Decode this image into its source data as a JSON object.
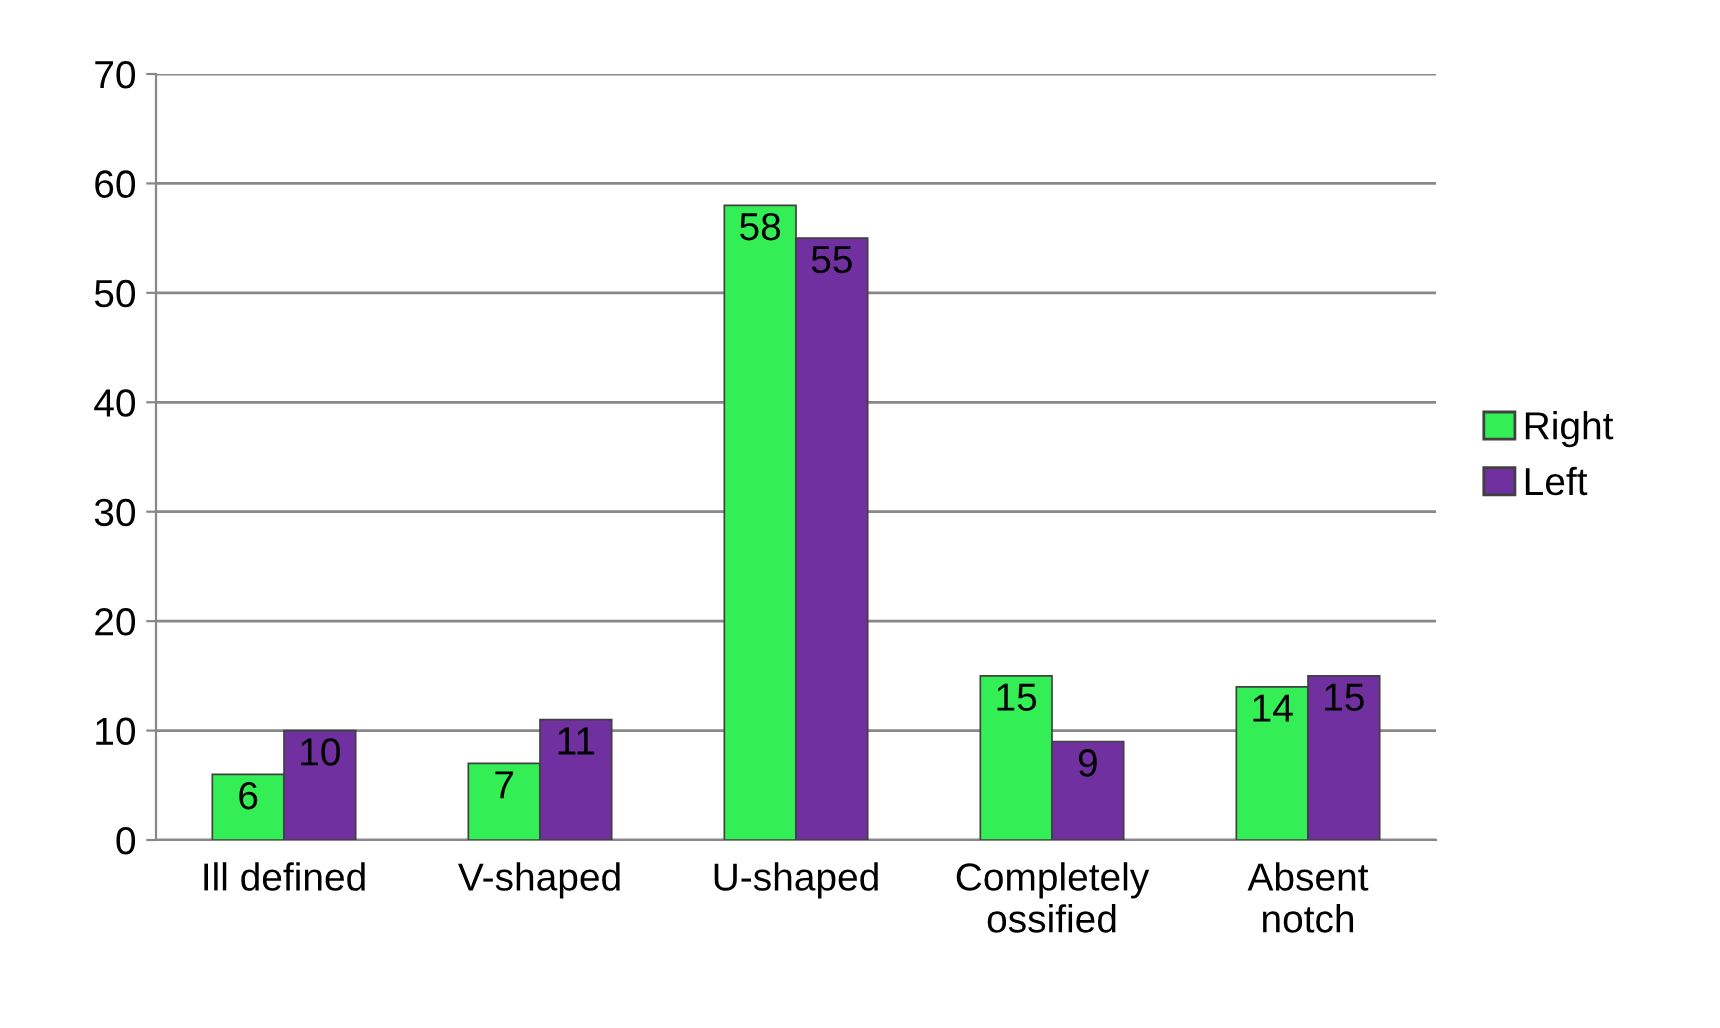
{
  "chart_data": {
    "type": "bar",
    "categories": [
      "Ill defined",
      "V-shaped",
      "U-shaped",
      "Completely\nossified",
      "Absent\nnotch"
    ],
    "series": [
      {
        "name": "Right",
        "color": "#33ee55",
        "values": [
          6,
          7,
          58,
          15,
          14
        ]
      },
      {
        "name": "Left",
        "color": "#7030a0",
        "values": [
          10,
          11,
          55,
          9,
          15
        ]
      }
    ],
    "ylim": [
      0,
      70
    ],
    "yticks": [
      0,
      10,
      20,
      30,
      40,
      50,
      60,
      70
    ],
    "grid": "y",
    "legend": "right",
    "data_labels": true
  }
}
